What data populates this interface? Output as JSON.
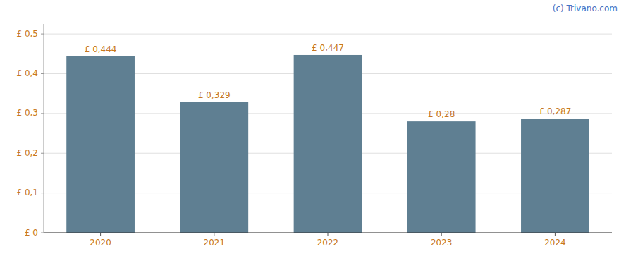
{
  "chart_data": {
    "type": "bar",
    "categories": [
      "2020",
      "2021",
      "2022",
      "2023",
      "2024"
    ],
    "values": [
      0.444,
      0.329,
      0.447,
      0.28,
      0.287
    ],
    "value_labels": [
      "£ 0,444",
      "£ 0,329",
      "£ 0,447",
      "£ 0,28",
      "£ 0,287"
    ],
    "data_labels": true,
    "color": "#5f7f92",
    "ylim": [
      0,
      0.525
    ],
    "yticks": [
      {
        "value": 0,
        "label": "£ 0"
      },
      {
        "value": 0.1,
        "label": "£ 0,1"
      },
      {
        "value": 0.2,
        "label": "£ 0,2"
      },
      {
        "value": 0.3,
        "label": "£ 0,3"
      },
      {
        "value": 0.4,
        "label": "£ 0,4"
      },
      {
        "value": 0.5,
        "label": "£ 0,5"
      }
    ],
    "grid": true,
    "annotations": [
      "(c) Trivano.com"
    ]
  }
}
